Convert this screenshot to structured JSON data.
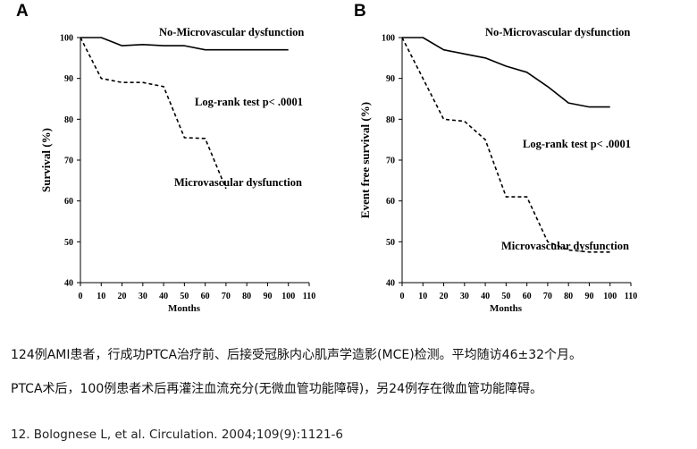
{
  "chart_data": [
    {
      "type": "line",
      "panel_label": "A",
      "xlabel": "Months",
      "ylabel": "Survival (%)",
      "xlim": [
        0,
        110
      ],
      "ylim": [
        40,
        100
      ],
      "x_ticks": [
        0,
        10,
        20,
        30,
        40,
        50,
        60,
        70,
        80,
        90,
        100,
        110
      ],
      "y_ticks": [
        40,
        50,
        60,
        70,
        80,
        90,
        100
      ],
      "grid": false,
      "series": [
        {
          "name": "No-Microvascular dysfunction",
          "style": "solid",
          "x": [
            0,
            10,
            20,
            30,
            40,
            50,
            60,
            70,
            80,
            90,
            100
          ],
          "y": [
            100,
            100,
            98,
            98.3,
            98,
            98,
            97,
            97,
            97,
            97,
            97
          ]
        },
        {
          "name": "Microvascular dysfunction",
          "style": "dashed",
          "x": [
            0,
            10,
            20,
            30,
            40,
            50,
            60,
            70
          ],
          "y": [
            100,
            90,
            89,
            89,
            88,
            75.5,
            75.3,
            63
          ]
        }
      ],
      "annotations": {
        "top_series": "No-Microvascular dysfunction",
        "test": "Log-rank test p< .0001",
        "bottom_series": "Microvascular dysfunction"
      }
    },
    {
      "type": "line",
      "panel_label": "B",
      "xlabel": "Months",
      "ylabel": "Event free survival (%)",
      "xlim": [
        0,
        110
      ],
      "ylim": [
        40,
        100
      ],
      "x_ticks": [
        0,
        10,
        20,
        30,
        40,
        50,
        60,
        70,
        80,
        90,
        100,
        110
      ],
      "y_ticks": [
        40,
        50,
        60,
        70,
        80,
        90,
        100
      ],
      "grid": false,
      "series": [
        {
          "name": "No-Microvascular dysfunction",
          "style": "solid",
          "x": [
            0,
            10,
            20,
            30,
            40,
            50,
            60,
            70,
            80,
            90,
            100
          ],
          "y": [
            100,
            100,
            97,
            96,
            95,
            93,
            91.5,
            88,
            84,
            83,
            83
          ]
        },
        {
          "name": "Microvascular dysfunction",
          "style": "dashed",
          "x": [
            0,
            10,
            20,
            30,
            40,
            50,
            60,
            70,
            80,
            90,
            100
          ],
          "y": [
            100,
            90,
            80,
            79.5,
            75,
            61,
            61,
            50,
            48,
            47.5,
            47.5
          ]
        }
      ],
      "annotations": {
        "top_series": "No-Microvascular dysfunction",
        "test": "Log-rank test p< .0001",
        "bottom_series": "Microvascular dysfunction"
      }
    }
  ],
  "notes": {
    "line1": "124例AMI患者，行成功PTCA治疗前、后接受冠脉内心肌声学造影(MCE)检测。平均随访46±32个月。",
    "line2": "PTCA术后，100例患者术后再灌注血流充分(无微血管功能障碍)，另24例存在微血管功能障碍。",
    "citation": "12. Bolognese L, et al. Circulation. 2004;109(9):1121-6"
  }
}
